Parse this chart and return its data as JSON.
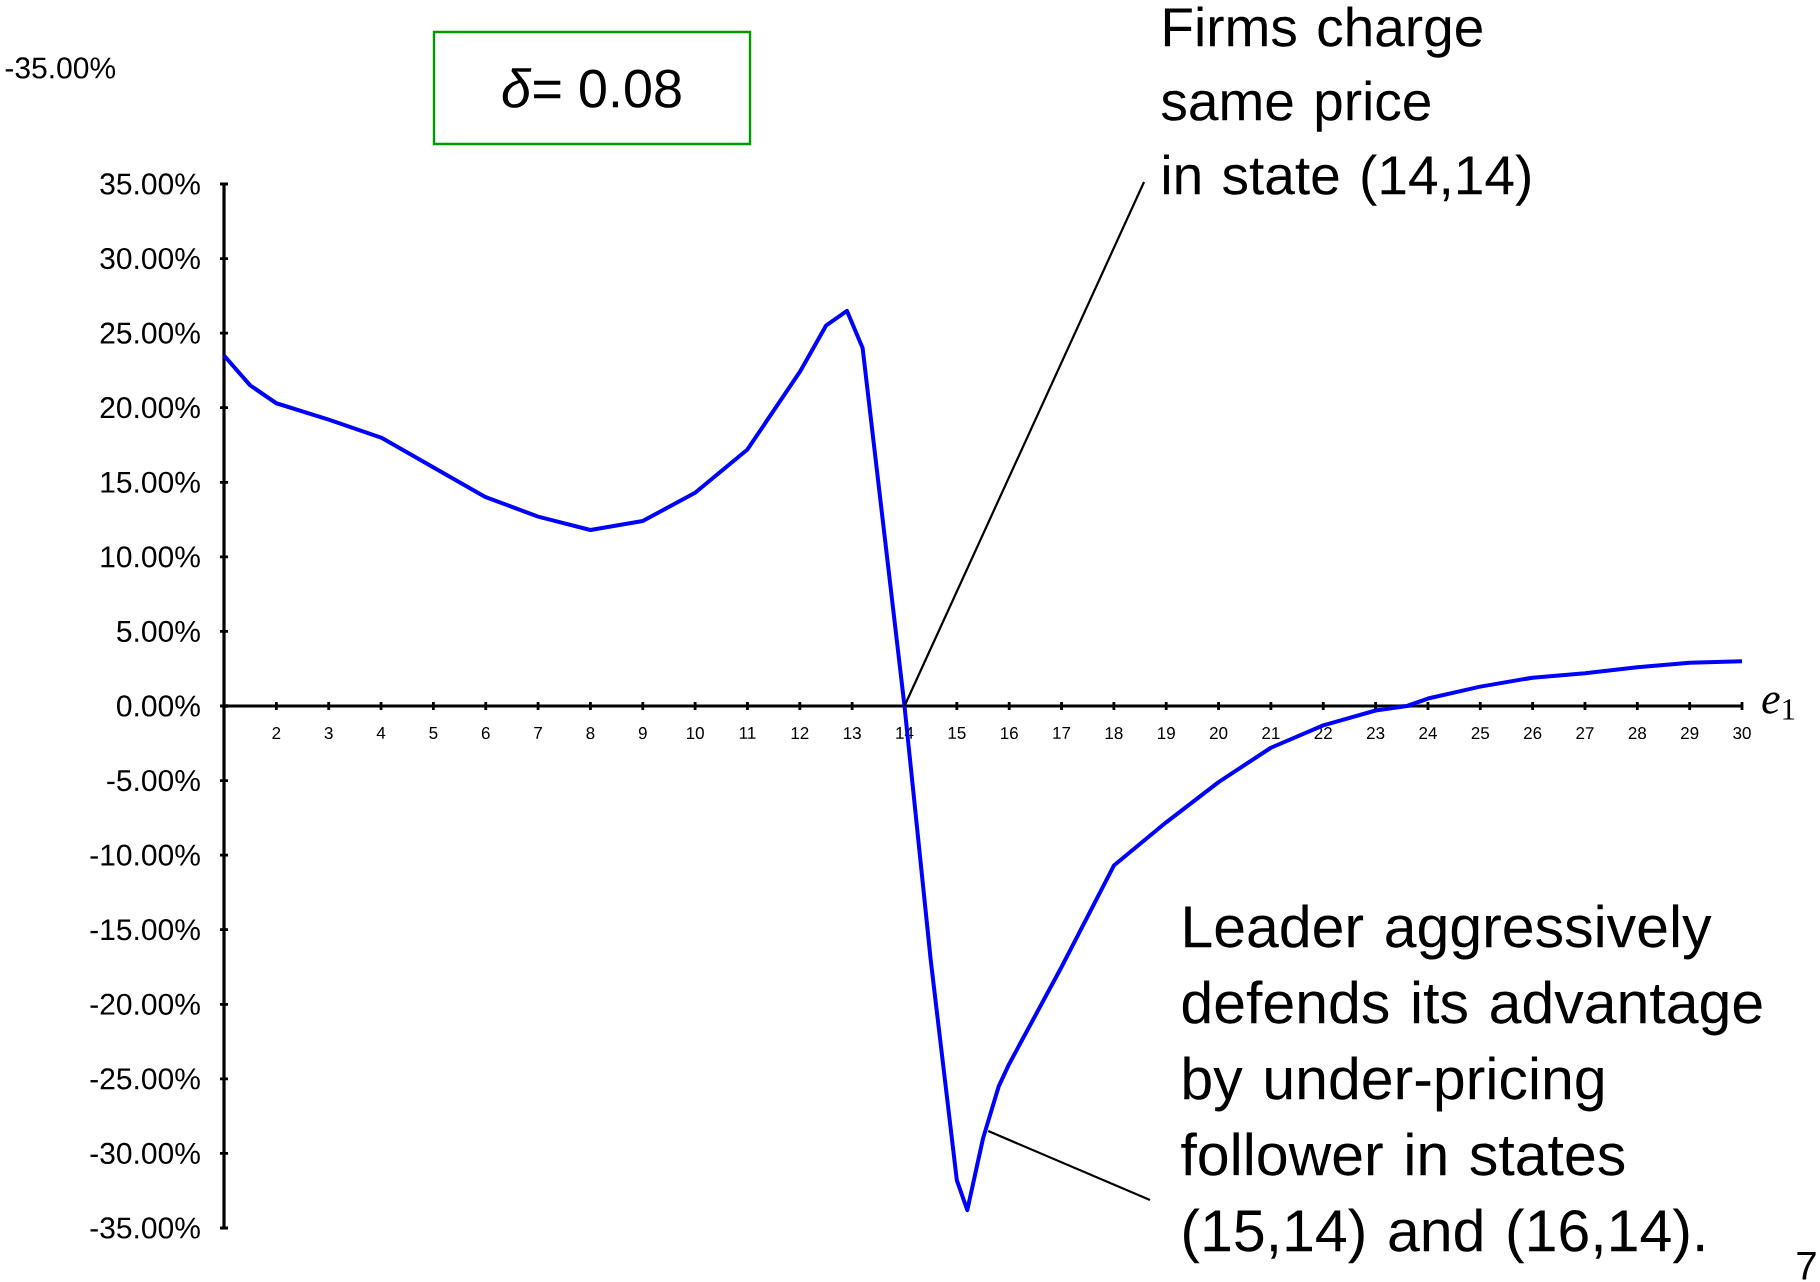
{
  "chart_data": {
    "type": "line",
    "title": "*δ*= 0.08",
    "xlabel": "*e*$_{1}$",
    "x": [
      1,
      1.5,
      2,
      3,
      4,
      5,
      6,
      7,
      8,
      9,
      10,
      11,
      12,
      12.5,
      12.9,
      13.2,
      13.5,
      14,
      14.5,
      15,
      15.2,
      15.5,
      15.8,
      16,
      17,
      18,
      19,
      20,
      21,
      22,
      23,
      23.6,
      24,
      25,
      26,
      27,
      28,
      29,
      30
    ],
    "series": [
      {
        "color": "#0000ff",
        "values": [
          23.5,
          21.5,
          20.3,
          19.2,
          18.0,
          16.0,
          14.0,
          12.7,
          11.8,
          12.4,
          14.3,
          17.2,
          22.4,
          25.5,
          26.5,
          24,
          15,
          0,
          -17,
          -31.8,
          -33.8,
          -29,
          -25.5,
          -24,
          -17.5,
          -10.7,
          -7.8,
          -5.1,
          -2.8,
          -1.3,
          -0.3,
          0,
          0.5,
          1.3,
          1.9,
          2.2,
          2.6,
          2.9,
          3.0
        ]
      }
    ],
    "xlim": [
      1,
      30
    ],
    "ylim": [
      -35,
      35
    ],
    "xticks": [
      2,
      3,
      4,
      5,
      6,
      7,
      8,
      9,
      10,
      11,
      12,
      13,
      14,
      15,
      16,
      17,
      18,
      19,
      20,
      21,
      22,
      23,
      24,
      25,
      26,
      27,
      28,
      29,
      30
    ],
    "yticks": [
      {
        "value": 35,
        "label": "35.00%"
      },
      {
        "value": 30,
        "label": "30.00%"
      },
      {
        "value": 25,
        "label": "25.00%"
      },
      {
        "value": 20,
        "label": "20.00%"
      },
      {
        "value": 15,
        "label": "15.00%"
      },
      {
        "value": 10,
        "label": "10.00%"
      },
      {
        "value": 5,
        "label": "5.00%"
      },
      {
        "value": 0,
        "label": "0.00%"
      },
      {
        "value": -5,
        "label": "-5.00%"
      },
      {
        "value": -10,
        "label": "-10.00%"
      },
      {
        "value": -15,
        "label": "-15.00%"
      },
      {
        "value": -20,
        "label": "-20.00%"
      },
      {
        "value": -25,
        "label": "-25.00%"
      },
      {
        "value": -30,
        "label": "-30.00%"
      },
      {
        "value": -35,
        "label": "-35.00%"
      }
    ],
    "annotations": [
      {
        "text": "Firms charge same price in state (14,14)",
        "x": 14,
        "y": 0
      },
      {
        "text": "Leader aggressively defends its advantage by under-pricing follower in states (15,14) and (16,14).",
        "x": 15.6,
        "y": -28.5
      },
      "-35.00%",
      "7"
    ],
    "grid": false,
    "marker": "none",
    "line_style": "solid"
  }
}
